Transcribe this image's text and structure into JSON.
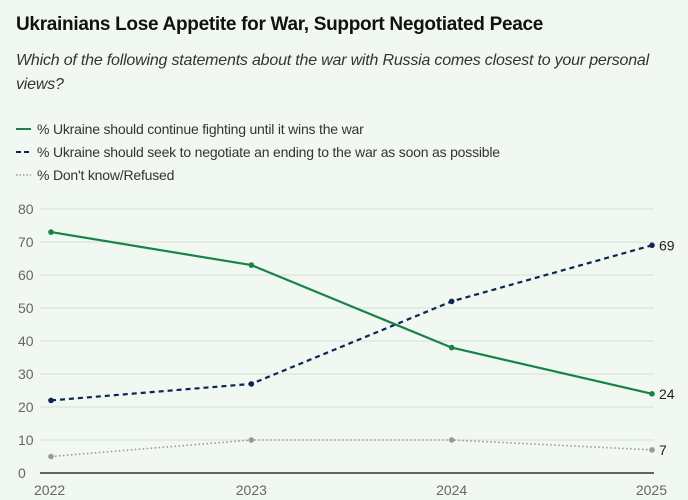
{
  "chart_data": {
    "type": "line",
    "title": "Ukrainians Lose Appetite for War, Support Negotiated Peace",
    "subtitle": "Which of the following statements about the war with Russia comes closest to your personal views?",
    "x": [
      "2022",
      "2023",
      "2024",
      "2025"
    ],
    "ylim": [
      0,
      80
    ],
    "yticks": [
      0,
      10,
      20,
      30,
      40,
      50,
      60,
      70,
      80
    ],
    "grid": true,
    "legend_position": "top-left",
    "series": [
      {
        "name": "% Ukraine should continue fighting until it wins the war",
        "values": [
          73,
          63,
          38,
          24
        ],
        "color": "#18824a",
        "style": "solid",
        "end_label": "24"
      },
      {
        "name": "% Ukraine should seek to negotiate an ending to the war as soon as possible",
        "values": [
          22,
          27,
          52,
          69
        ],
        "color": "#0d2456",
        "style": "dashed",
        "end_label": "69"
      },
      {
        "name": "% Don't know/Refused",
        "values": [
          5,
          10,
          10,
          7
        ],
        "color": "#999999",
        "style": "dotted",
        "end_label": "7"
      }
    ]
  }
}
